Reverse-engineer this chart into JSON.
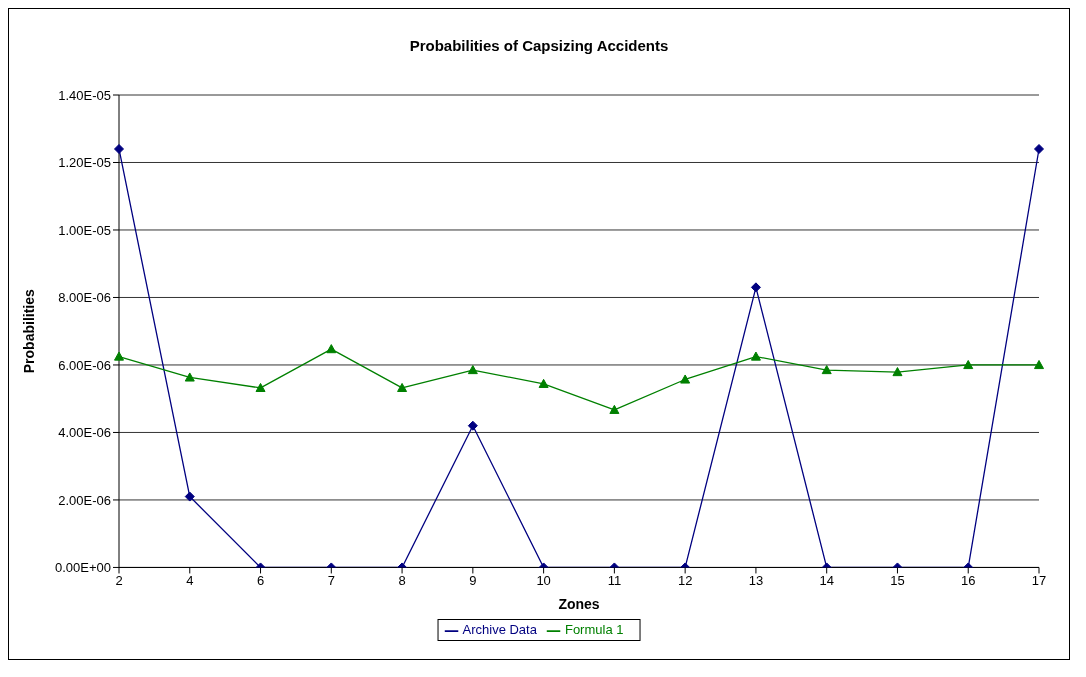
{
  "chart_data": {
    "type": "line",
    "title": "Probabilities of Capsizing Accidents",
    "xlabel": "Zones",
    "ylabel": "Probabilities",
    "categories": [
      "2",
      "4",
      "6",
      "7",
      "8",
      "9",
      "10",
      "11",
      "12",
      "13",
      "14",
      "15",
      "16",
      "17"
    ],
    "series": [
      {
        "name": "Archive Data",
        "color": "#000080",
        "marker": "diamond",
        "values": [
          1.24e-05,
          2.1e-06,
          0,
          0,
          0,
          4.2e-06,
          0,
          0,
          0,
          8.3e-06,
          0,
          0,
          0,
          1.24e-05
        ]
      },
      {
        "name": "Formula 1",
        "color": "#008000",
        "marker": "triangle",
        "values": [
          6.25e-06,
          5.63e-06,
          5.32e-06,
          6.47e-06,
          5.32e-06,
          5.85e-06,
          5.44e-06,
          4.67e-06,
          5.57e-06,
          6.25e-06,
          5.85e-06,
          5.79e-06,
          6e-06,
          6e-06
        ]
      }
    ],
    "ylim": [
      0,
      1.4e-05
    ],
    "yticks": [
      {
        "value": 0,
        "label": "0.00E+00"
      },
      {
        "value": 2e-06,
        "label": "2.00E-06"
      },
      {
        "value": 4e-06,
        "label": "4.00E-06"
      },
      {
        "value": 6e-06,
        "label": "6.00E-06"
      },
      {
        "value": 8e-06,
        "label": "8.00E-06"
      },
      {
        "value": 1e-05,
        "label": "1.00E-05"
      },
      {
        "value": 1.2e-05,
        "label": "1.20E-05"
      },
      {
        "value": 1.4e-05,
        "label": "1.40E-05"
      }
    ],
    "grid": "y",
    "legend": "bottom",
    "line_style": "solid"
  }
}
